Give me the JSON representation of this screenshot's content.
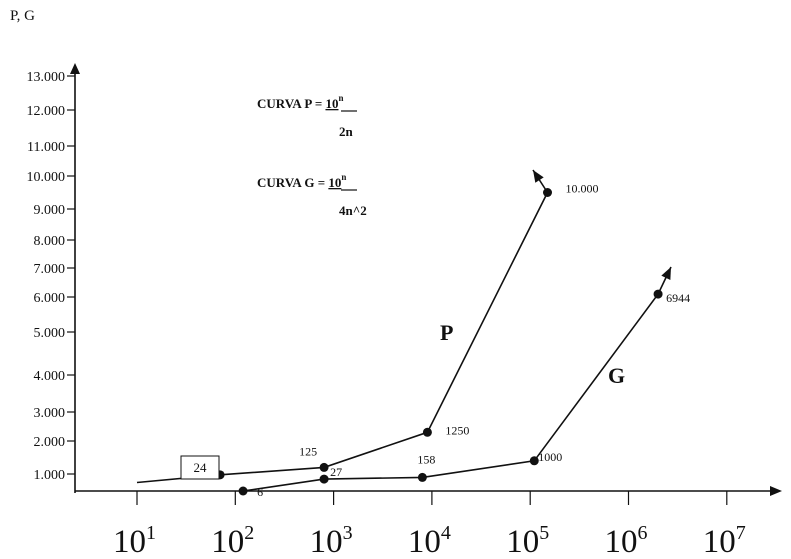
{
  "chart_data": {
    "type": "line",
    "ylabel": "P, G",
    "y_ticks": [
      "1.000",
      "2.000",
      "3.000",
      "4.000",
      "5.000",
      "6.000",
      "7.000",
      "8.000",
      "9.000",
      "10.000",
      "11.000",
      "12.000",
      "13.000"
    ],
    "y_tick_values": [
      1000,
      2000,
      3000,
      4000,
      5000,
      6000,
      7000,
      8000,
      9000,
      10000,
      11000,
      12000,
      13000
    ],
    "x_ticks": [
      {
        "base": "10",
        "exp": "1",
        "value": 10
      },
      {
        "base": "10",
        "exp": "2",
        "value": 100
      },
      {
        "base": "10",
        "exp": "3",
        "value": 1000
      },
      {
        "base": "10",
        "exp": "4",
        "value": 10000
      },
      {
        "base": "10",
        "exp": "5",
        "value": 100000
      },
      {
        "base": "10",
        "exp": "6",
        "value": 1000000
      },
      {
        "base": "10",
        "exp": "7",
        "value": 10000000
      }
    ],
    "x_scale": "log",
    "ylim": [
      0,
      13000
    ],
    "grid": false,
    "annotations": [
      {
        "prefix": "CURVA  P = ",
        "base": "10",
        "exp": "n",
        "denominator": "2n"
      },
      {
        "prefix": "CURVA  G = ",
        "base": "10",
        "exp": "n",
        "denominator": "4n^2"
      }
    ],
    "series": [
      {
        "name": "P",
        "points": [
          {
            "x": 10,
            "y": 500,
            "label": ""
          },
          {
            "x": 70,
            "y": 950,
            "label": "24",
            "boxed": true
          },
          {
            "x": 800,
            "y": 1200,
            "label": "125"
          },
          {
            "x": 9000,
            "y": 2300,
            "label": "1250"
          },
          {
            "x": 150000,
            "y": 9500,
            "label": "10.000"
          }
        ]
      },
      {
        "name": "G",
        "points": [
          {
            "x": 120,
            "y": 0,
            "label": "6"
          },
          {
            "x": 800,
            "y": 700,
            "label": "27"
          },
          {
            "x": 8000,
            "y": 800,
            "label": "158"
          },
          {
            "x": 110000,
            "y": 1400,
            "label": "1000"
          },
          {
            "x": 2000000,
            "y": 6100,
            "label": "6944"
          }
        ]
      }
    ]
  }
}
